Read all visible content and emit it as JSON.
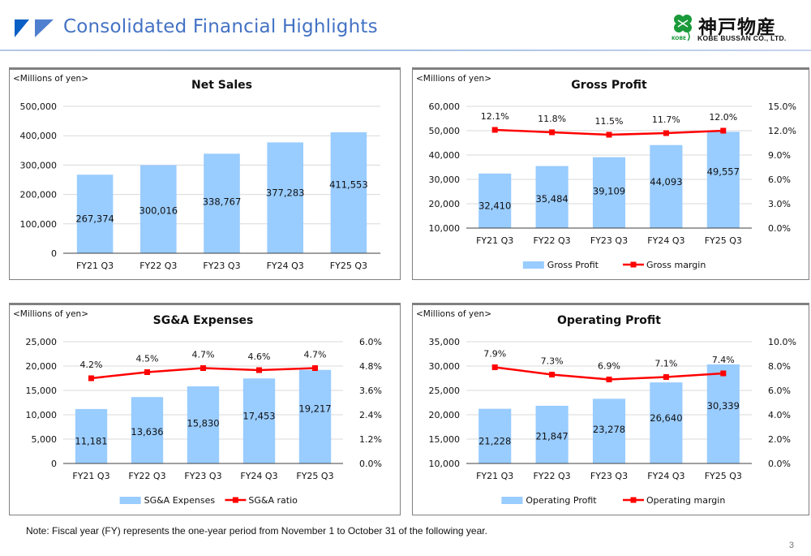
{
  "header": {
    "title": "Consolidated Financial Highlights",
    "accent_color": "#4472c4"
  },
  "logo": {
    "japanese_name": "神戸物産",
    "english_name": "KOBE BUSSAN CO., LTD.",
    "badge_text": "KOBE",
    "clover_color": "#1a9a3a"
  },
  "footer": {
    "note": "Note: Fiscal year (FY) represents the one-year period from November 1 to October 31 of the following year.",
    "page_number": "3"
  },
  "chart_data": [
    {
      "id": "net-sales",
      "type": "bar",
      "title": "Net Sales",
      "unit_label": "<Millions of yen>",
      "categories": [
        "FY21 Q3",
        "FY22 Q3",
        "FY23 Q3",
        "FY24 Q3",
        "FY25 Q3"
      ],
      "series": [
        {
          "name": "Net Sales",
          "kind": "bar",
          "axis": "left",
          "color": "#99ccff",
          "values": [
            267374,
            300016,
            338767,
            377283,
            411553
          ],
          "labels": [
            "267,374",
            "300,016",
            "338,767",
            "377,283",
            "411,553"
          ]
        }
      ],
      "left_axis": {
        "min": 0,
        "max": 500000,
        "ticks": [
          "0",
          "100,000",
          "200,000",
          "300,000",
          "400,000",
          "500,000"
        ]
      },
      "right_axis": null,
      "grid": true,
      "legend": null
    },
    {
      "id": "gross-profit",
      "type": "bar",
      "title": "Gross Profit",
      "unit_label": "<Millions of yen>",
      "categories": [
        "FY21 Q3",
        "FY22 Q3",
        "FY23 Q3",
        "FY24 Q3",
        "FY25 Q3"
      ],
      "series": [
        {
          "name": "Gross Profit",
          "kind": "bar",
          "axis": "left",
          "color": "#99ccff",
          "values": [
            32410,
            35484,
            39109,
            44093,
            49557
          ],
          "labels": [
            "32,410",
            "35,484",
            "39,109",
            "44,093",
            "49,557"
          ]
        },
        {
          "name": "Gross margin",
          "kind": "line",
          "axis": "right",
          "color": "#ff0000",
          "values": [
            12.1,
            11.8,
            11.5,
            11.7,
            12.0
          ],
          "labels": [
            "12.1%",
            "11.8%",
            "11.5%",
            "11.7%",
            "12.0%"
          ]
        }
      ],
      "left_axis": {
        "min": 10000,
        "max": 60000,
        "ticks": [
          "10,000",
          "20,000",
          "30,000",
          "40,000",
          "50,000",
          "60,000"
        ]
      },
      "right_axis": {
        "min": 0,
        "max": 15,
        "ticks": [
          "0.0%",
          "3.0%",
          "6.0%",
          "9.0%",
          "12.0%",
          "15.0%"
        ]
      },
      "grid": true,
      "legend": "bottom"
    },
    {
      "id": "sga-expenses",
      "type": "bar",
      "title": "SG&A Expenses",
      "unit_label": "<Millions of yen>",
      "categories": [
        "FY21 Q3",
        "FY22 Q3",
        "FY23 Q3",
        "FY24 Q3",
        "FY25 Q3"
      ],
      "series": [
        {
          "name": "SG&A Expenses",
          "kind": "bar",
          "axis": "left",
          "color": "#99ccff",
          "values": [
            11181,
            13636,
            15830,
            17453,
            19217
          ],
          "labels": [
            "11,181",
            "13,636",
            "15,830",
            "17,453",
            "19,217"
          ]
        },
        {
          "name": "SG&A ratio",
          "kind": "line",
          "axis": "right",
          "color": "#ff0000",
          "values": [
            4.2,
            4.5,
            4.7,
            4.6,
            4.7
          ],
          "labels": [
            "4.2%",
            "4.5%",
            "4.7%",
            "4.6%",
            "4.7%"
          ]
        }
      ],
      "left_axis": {
        "min": 0,
        "max": 25000,
        "ticks": [
          "0",
          "5,000",
          "10,000",
          "15,000",
          "20,000",
          "25,000"
        ]
      },
      "right_axis": {
        "min": 0,
        "max": 6,
        "ticks": [
          "0.0%",
          "1.2%",
          "2.4%",
          "3.6%",
          "4.8%",
          "6.0%"
        ]
      },
      "grid": true,
      "legend": "bottom"
    },
    {
      "id": "operating-profit",
      "type": "bar",
      "title": "Operating Profit",
      "unit_label": "<Millions of yen>",
      "categories": [
        "FY21 Q3",
        "FY22 Q3",
        "FY23 Q3",
        "FY24 Q3",
        "FY25 Q3"
      ],
      "series": [
        {
          "name": "Operating Profit",
          "kind": "bar",
          "axis": "left",
          "color": "#99ccff",
          "values": [
            21228,
            21847,
            23278,
            26640,
            30339
          ],
          "labels": [
            "21,228",
            "21,847",
            "23,278",
            "26,640",
            "30,339"
          ]
        },
        {
          "name": "Operating margin",
          "kind": "line",
          "axis": "right",
          "color": "#ff0000",
          "values": [
            7.9,
            7.3,
            6.9,
            7.1,
            7.4
          ],
          "labels": [
            "7.9%",
            "7.3%",
            "6.9%",
            "7.1%",
            "7.4%"
          ]
        }
      ],
      "left_axis": {
        "min": 10000,
        "max": 35000,
        "ticks": [
          "10,000",
          "15,000",
          "20,000",
          "25,000",
          "30,000",
          "35,000"
        ]
      },
      "right_axis": {
        "min": 0,
        "max": 10,
        "ticks": [
          "0.0%",
          "2.0%",
          "4.0%",
          "6.0%",
          "8.0%",
          "10.0%"
        ]
      },
      "grid": true,
      "legend": "bottom"
    }
  ]
}
